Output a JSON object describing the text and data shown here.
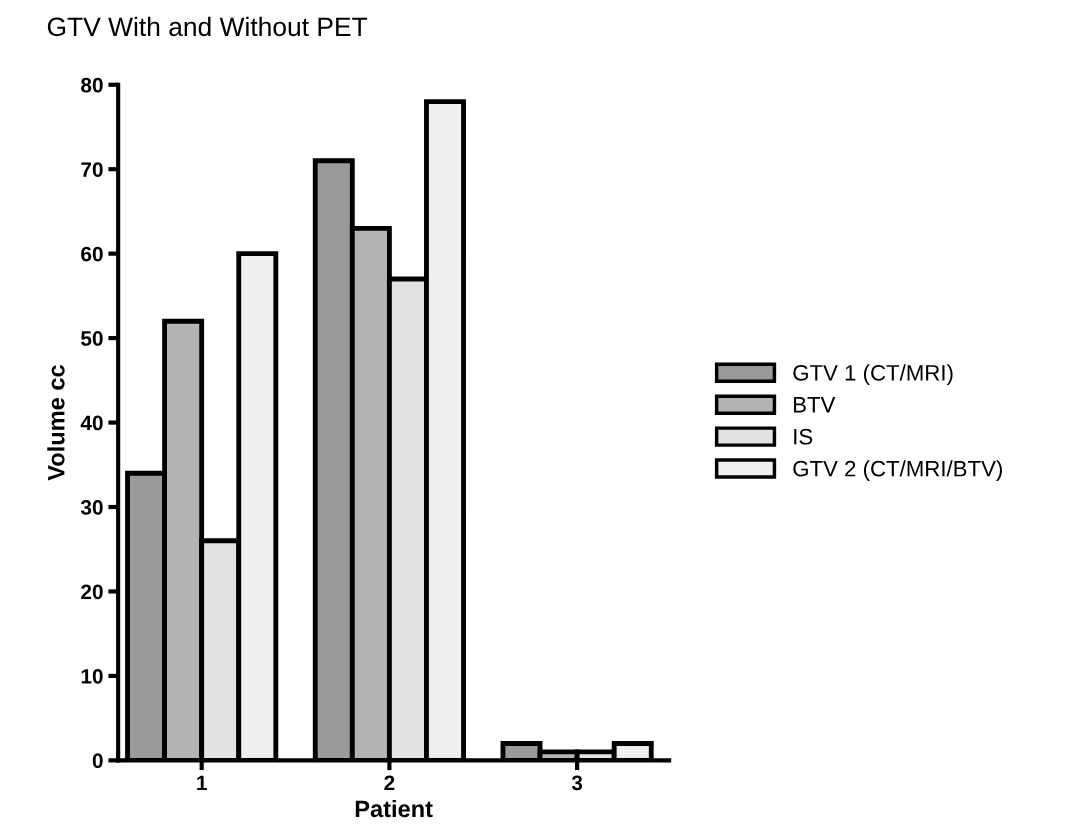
{
  "chart_data": {
    "type": "bar",
    "title": "GTV With and Without PET",
    "xlabel": "Patient",
    "ylabel": "Volume cc",
    "categories": [
      "1",
      "2",
      "3"
    ],
    "series": [
      {
        "name": "GTV 1 (CT/MRI)",
        "color": "#9a9a9a",
        "values": [
          34,
          71,
          2
        ]
      },
      {
        "name": "BTV",
        "color": "#b4b4b4",
        "values": [
          52,
          63,
          1
        ]
      },
      {
        "name": "IS",
        "color": "#e2e2e2",
        "values": [
          26,
          57,
          1
        ]
      },
      {
        "name": "GTV 2 (CT/MRI/BTV)",
        "color": "#efefef",
        "values": [
          60,
          78,
          2
        ]
      }
    ],
    "ylim": [
      0,
      80
    ],
    "yticks": [
      0,
      10,
      20,
      30,
      40,
      50,
      60,
      70,
      80
    ],
    "grid": false,
    "legend": "right"
  }
}
